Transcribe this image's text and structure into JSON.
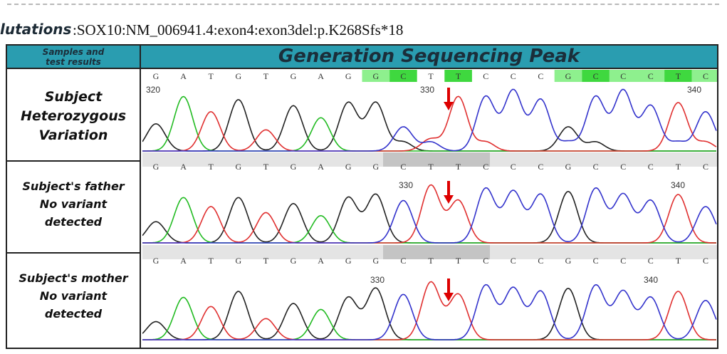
{
  "mutation": {
    "label": "lutations",
    "text": ":SOX10:NM_006941.4:exon4:exon3del:p.K268Sfs*18"
  },
  "table": {
    "left_header_line1": "Samples and",
    "left_header_line2": "test results",
    "title": "Generation Sequencing Peak"
  },
  "rows": [
    {
      "lines": [
        "Subject",
        "Heterozygous",
        "Variation"
      ]
    },
    {
      "lines": [
        "Subject's father",
        "No variant",
        "detected"
      ]
    },
    {
      "lines": [
        "Subject's mother",
        "No variant",
        "detected"
      ]
    }
  ],
  "sequence": [
    "G",
    "A",
    "T",
    "G",
    "T",
    "G",
    "A",
    "G",
    "G",
    "C",
    "T",
    "T",
    "C",
    "C",
    "C",
    "G",
    "C",
    "C",
    "C",
    "T",
    "C"
  ],
  "highlighted_bases_row1": [
    8,
    9,
    11,
    15,
    16,
    17,
    18,
    19,
    20
  ],
  "position_labels": [
    {
      "panel": 0,
      "labels": [
        "320",
        "330",
        "340"
      ]
    },
    {
      "panel": 1,
      "labels": [
        "330",
        "340"
      ]
    },
    {
      "panel": 2,
      "labels": [
        "330",
        "340"
      ]
    }
  ],
  "colors": {
    "header_bg": "#2a9db0",
    "highlight_light": "#8ef08e",
    "highlight_dark": "#3fd83f",
    "trace_G": "#222222",
    "trace_A": "#22bb22",
    "trace_T": "#e03030",
    "trace_C": "#3333cc",
    "arrow": "#dd0000"
  }
}
